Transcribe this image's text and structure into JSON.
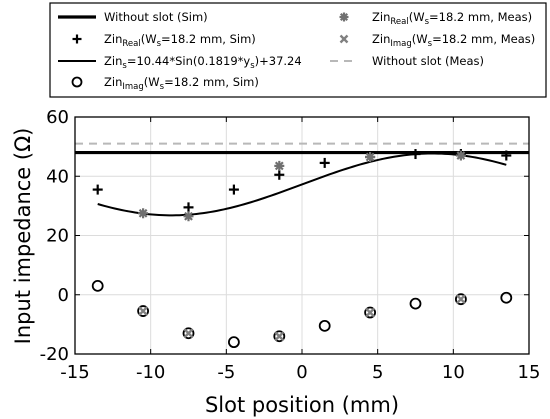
{
  "chart_data": {
    "type": "scatter",
    "xlabel": "Slot position (mm)",
    "ylabel": "Input impedance (Ω)",
    "xlim": [
      -15,
      15
    ],
    "ylim": [
      -20,
      60
    ],
    "xticks": [
      -15,
      -10,
      -5,
      0,
      5,
      10,
      15
    ],
    "yticks": [
      -20,
      0,
      20,
      40,
      60
    ],
    "xtick_labels": [
      "-15",
      "-10",
      "-5",
      "0",
      "5",
      "10",
      "15"
    ],
    "ytick_labels": [
      "-20",
      "0",
      "20",
      "40",
      "60"
    ],
    "grid": true,
    "legend_position": "top (above plot), two columns",
    "series": [
      {
        "name": "Without slot (Sim)",
        "kind": "hline",
        "y": 48,
        "color": "#000000",
        "style": "solid-thick",
        "legend": {
          "main": "Without slot (Sim)"
        }
      },
      {
        "name": "ZinReal(Ws=18.2 mm, Sim)",
        "kind": "markers",
        "marker": "plus",
        "color": "#000000",
        "x": [
          -13.5,
          -7.5,
          -4.5,
          -1.5,
          1.5,
          4.5,
          7.5,
          10.5,
          13.5
        ],
        "y": [
          35.5,
          29.5,
          35.5,
          40.5,
          44.5,
          46.5,
          47.5,
          47.5,
          47.0
        ],
        "legend": {
          "main": "Zin",
          "sub": "Real",
          "rest": "(W",
          "sub2": "s",
          "rest2": "=18.2 mm, Sim)"
        }
      },
      {
        "name": "Zins=10.44*Sin(0.1819*ys)+37.24",
        "kind": "curve",
        "formula": {
          "amplitude": 10.44,
          "frequency": 0.1819,
          "offset": 37.24
        },
        "x_range": [
          -13.5,
          13.5
        ],
        "color": "#000000",
        "style": "solid",
        "legend": {
          "main": "Zin",
          "sub": "s",
          "rest": "=10.44*Sin(0.1819*y",
          "sub2": "s",
          "rest2": ")+37.24"
        }
      },
      {
        "name": "ZinImag(Ws=18.2 mm, Sim)",
        "kind": "markers",
        "marker": "circle",
        "color": "#000000",
        "x": [
          -13.5,
          -10.5,
          -7.5,
          -4.5,
          -1.5,
          1.5,
          4.5,
          7.5,
          10.5,
          13.5
        ],
        "y": [
          3.0,
          -5.5,
          -13.0,
          -16.0,
          -14.0,
          -10.5,
          -6.0,
          -3.0,
          -1.5,
          -1.0
        ],
        "legend": {
          "main": "Zin",
          "sub": "Imag",
          "rest": "(W",
          "sub2": "s",
          "rest2": "=18.2 mm, Sim)"
        }
      },
      {
        "name": "ZinReal(Ws=18.2 mm, Meas)",
        "kind": "markers",
        "marker": "asterisk",
        "color": "#707070",
        "x": [
          -10.5,
          -7.5,
          -1.5,
          4.5,
          10.5
        ],
        "y": [
          27.5,
          26.5,
          43.5,
          46.5,
          47.0
        ],
        "legend": {
          "main": "Zin",
          "sub": "Real",
          "rest": "(W",
          "sub2": "s",
          "rest2": "=18.2 mm, Meas)"
        }
      },
      {
        "name": "ZinImag(Ws=18.2 mm, Meas)",
        "kind": "markers",
        "marker": "cross",
        "color": "#808080",
        "x": [
          -10.5,
          -7.5,
          -1.5,
          4.5,
          10.5
        ],
        "y": [
          -5.5,
          -13.0,
          -14.0,
          -6.0,
          -1.5
        ],
        "legend": {
          "main": "Zin",
          "sub": "Imag",
          "rest": "(W",
          "sub2": "s",
          "rest2": "=18.2 mm, Meas)"
        }
      },
      {
        "name": "Without slot (Meas)",
        "kind": "hline",
        "y": 51,
        "color": "#b8b8b8",
        "style": "dashed",
        "legend": {
          "main": "Without slot (Meas)"
        }
      }
    ]
  }
}
